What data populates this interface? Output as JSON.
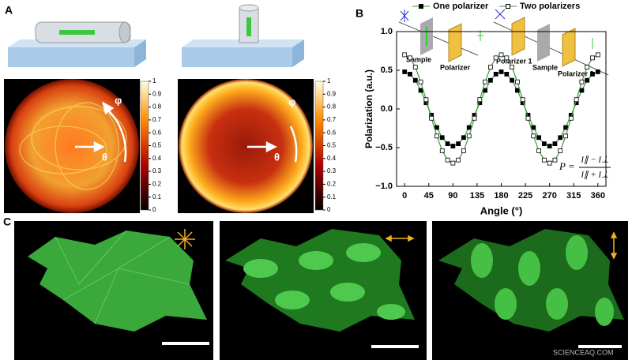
{
  "figure": {
    "panel_labels": [
      "A",
      "B",
      "C"
    ],
    "heatmap_left": {
      "angle_label_1": "φ",
      "angle_label_2": "θ",
      "colorbar_ticks": [
        0,
        0.1,
        0.2,
        0.3,
        0.4,
        0.5,
        0.6,
        0.7,
        0.8,
        0.9,
        1
      ]
    },
    "heatmap_right": {
      "angle_label_1": "φ",
      "angle_label_2": "θ",
      "colorbar_ticks": [
        0,
        0.1,
        0.2,
        0.3,
        0.4,
        0.5,
        0.6,
        0.7,
        0.8,
        0.9,
        1
      ]
    },
    "inset_one": [
      "Sample",
      "Polarizer"
    ],
    "inset_two": [
      "Polarizer 1",
      "Sample",
      "Polarizer 2"
    ],
    "formula": {
      "lhs": "P =",
      "numerator": "I∥ − I⊥",
      "denominator": "I∥ + I⊥"
    },
    "watermark": "SCIENCEAQ.COM"
  },
  "chart_data": {
    "type": "line",
    "xlabel": "Angle (°)",
    "ylabel": "Polarization (a.u.)",
    "x": [
      0,
      10,
      20,
      30,
      40,
      50,
      60,
      70,
      80,
      90,
      100,
      110,
      120,
      130,
      140,
      150,
      160,
      170,
      180,
      190,
      200,
      210,
      220,
      230,
      240,
      250,
      260,
      270,
      280,
      290,
      300,
      310,
      320,
      330,
      340,
      350,
      360
    ],
    "series": [
      {
        "name": "One polarizer",
        "color": "#3a9a3a",
        "marker": "filled",
        "values": [
          0.48,
          0.45,
          0.37,
          0.24,
          0.08,
          -0.08,
          -0.24,
          -0.37,
          -0.45,
          -0.48,
          -0.45,
          -0.37,
          -0.24,
          -0.08,
          0.08,
          0.24,
          0.37,
          0.45,
          0.48,
          0.45,
          0.37,
          0.24,
          0.08,
          -0.08,
          -0.24,
          -0.37,
          -0.45,
          -0.48,
          -0.45,
          -0.37,
          -0.24,
          -0.08,
          0.08,
          0.24,
          0.37,
          0.45,
          0.48
        ]
      },
      {
        "name": "Two polarizers",
        "color": "#3a9a3a",
        "marker": "open",
        "values": [
          0.7,
          0.66,
          0.54,
          0.35,
          0.12,
          -0.12,
          -0.35,
          -0.54,
          -0.66,
          -0.7,
          -0.66,
          -0.54,
          -0.35,
          -0.12,
          0.12,
          0.35,
          0.54,
          0.66,
          0.7,
          0.66,
          0.54,
          0.35,
          0.12,
          -0.12,
          -0.35,
          -0.54,
          -0.66,
          -0.7,
          -0.66,
          -0.54,
          -0.35,
          -0.12,
          0.12,
          0.35,
          0.54,
          0.66,
          0.7
        ]
      }
    ],
    "xlim": [
      -15,
      375
    ],
    "xticks": [
      0,
      45,
      90,
      135,
      180,
      225,
      270,
      315,
      360
    ],
    "ylim": [
      -1,
      1
    ],
    "yticks": [
      {
        "value": -1,
        "label": "−1.0"
      },
      {
        "value": -0.5,
        "label": "−0.5"
      },
      {
        "value": 0,
        "label": "0.0"
      },
      {
        "value": 0.5,
        "label": "0.5"
      },
      {
        "value": 1,
        "label": "1.0"
      }
    ],
    "grid": false
  }
}
